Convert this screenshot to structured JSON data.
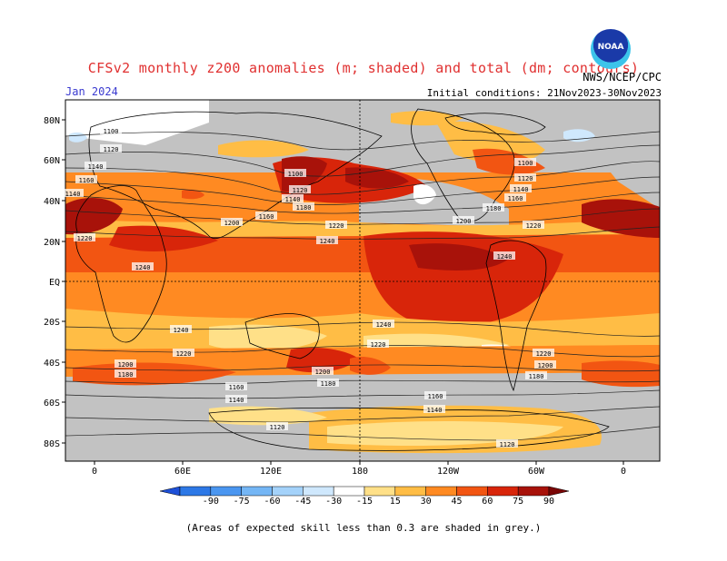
{
  "header": {
    "title": "CFSv2 monthly z200 anomalies (m; shaded) and total (dm; contours)",
    "month": "Jan 2024",
    "agency": "NWS/NCEP/CPC",
    "initial_conditions": "Initial conditions: 21Nov2023-30Nov2023",
    "logo_text": "NOAA"
  },
  "axes": {
    "lat_labels": [
      "80N",
      "60N",
      "40N",
      "20N",
      "EQ",
      "20S",
      "40S",
      "60S",
      "80S"
    ],
    "lon_labels": [
      "0",
      "60E",
      "120E",
      "180",
      "120W",
      "60W",
      "0"
    ]
  },
  "colorbar": {
    "labels": [
      "-90",
      "-75",
      "-60",
      "-45",
      "-30",
      "-15",
      "15",
      "30",
      "45",
      "60",
      "75",
      "90"
    ],
    "colors": [
      "#1e50d8",
      "#2d78e6",
      "#4a96f0",
      "#74b6f5",
      "#a4d2fa",
      "#cfe8fd",
      "#ffffff",
      "#ffe088",
      "#ffbd45",
      "#ff8a22",
      "#f25512",
      "#d8250a",
      "#a8120a",
      "#7a0606"
    ]
  },
  "contour_labels": [
    "1100",
    "1120",
    "1140",
    "1160",
    "1180",
    "1200",
    "1220",
    "1240"
  ],
  "footnote": "(Areas of expected skill less than 0.3 are shaded in grey.)",
  "palette": {
    "grey_mask": "#c2c2c2",
    "title_red": "#e03030",
    "month_blue": "#3a3ad0"
  }
}
